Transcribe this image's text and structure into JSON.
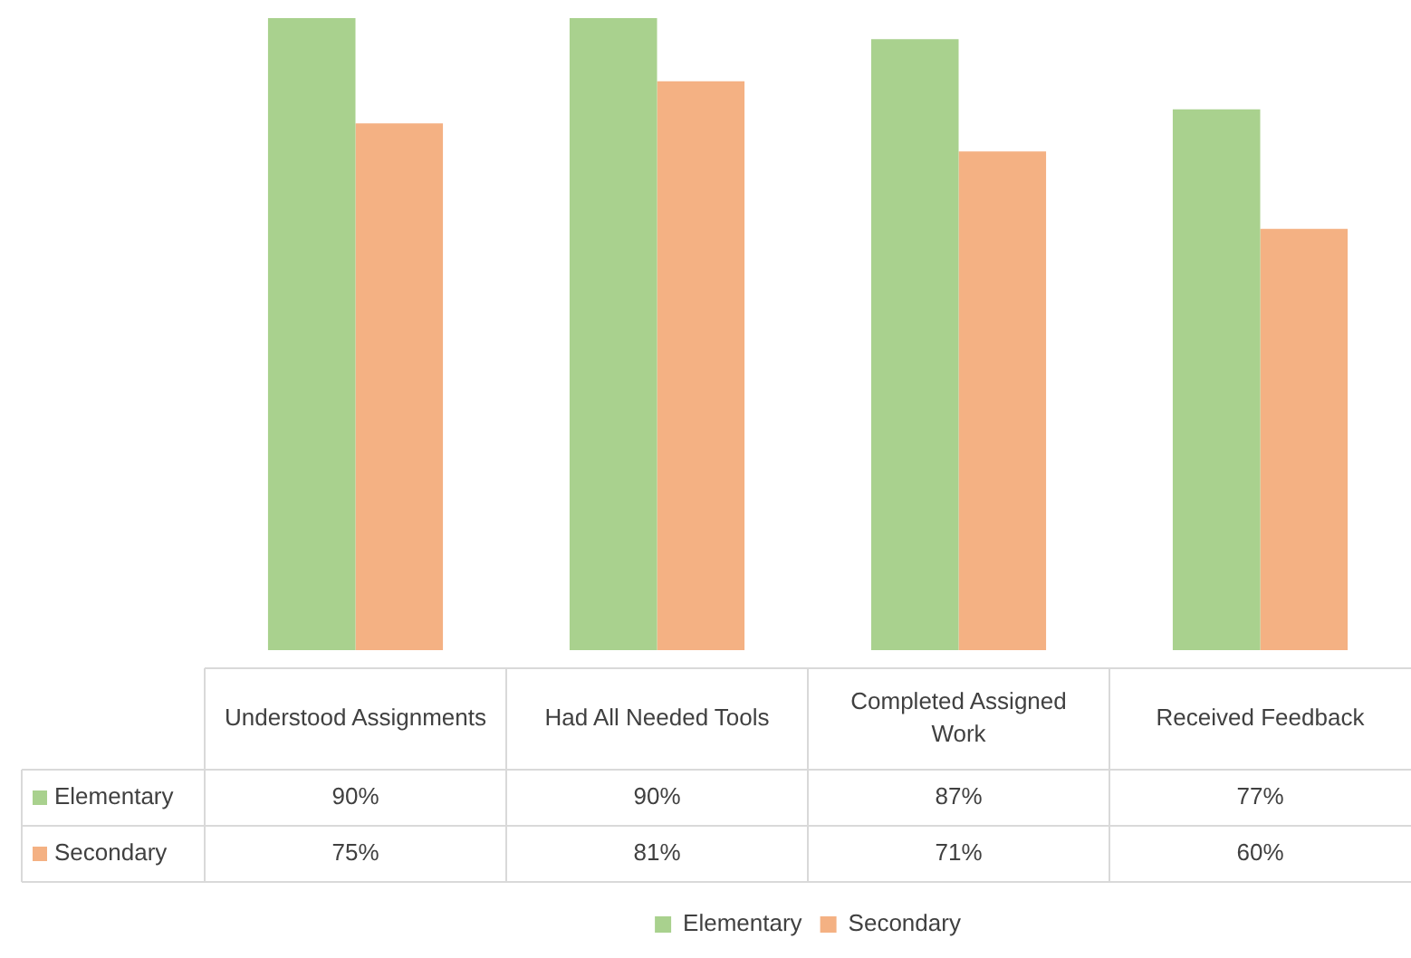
{
  "chart_data": {
    "type": "bar",
    "categories": [
      "Understood Assignments",
      "Had All Needed Tools",
      "Completed Assigned Work",
      "Received Feedback"
    ],
    "series": [
      {
        "name": "Elementary",
        "color": "#a9d18e",
        "values": [
          90,
          90,
          87,
          77
        ],
        "value_labels": [
          "90%",
          "90%",
          "87%",
          "77%"
        ]
      },
      {
        "name": "Secondary",
        "color": "#f4b183",
        "values": [
          75,
          81,
          71,
          60
        ],
        "value_labels": [
          "75%",
          "81%",
          "71%",
          "60%"
        ]
      }
    ],
    "tick_labels": false,
    "legend": "bottom",
    "grid": false
  }
}
